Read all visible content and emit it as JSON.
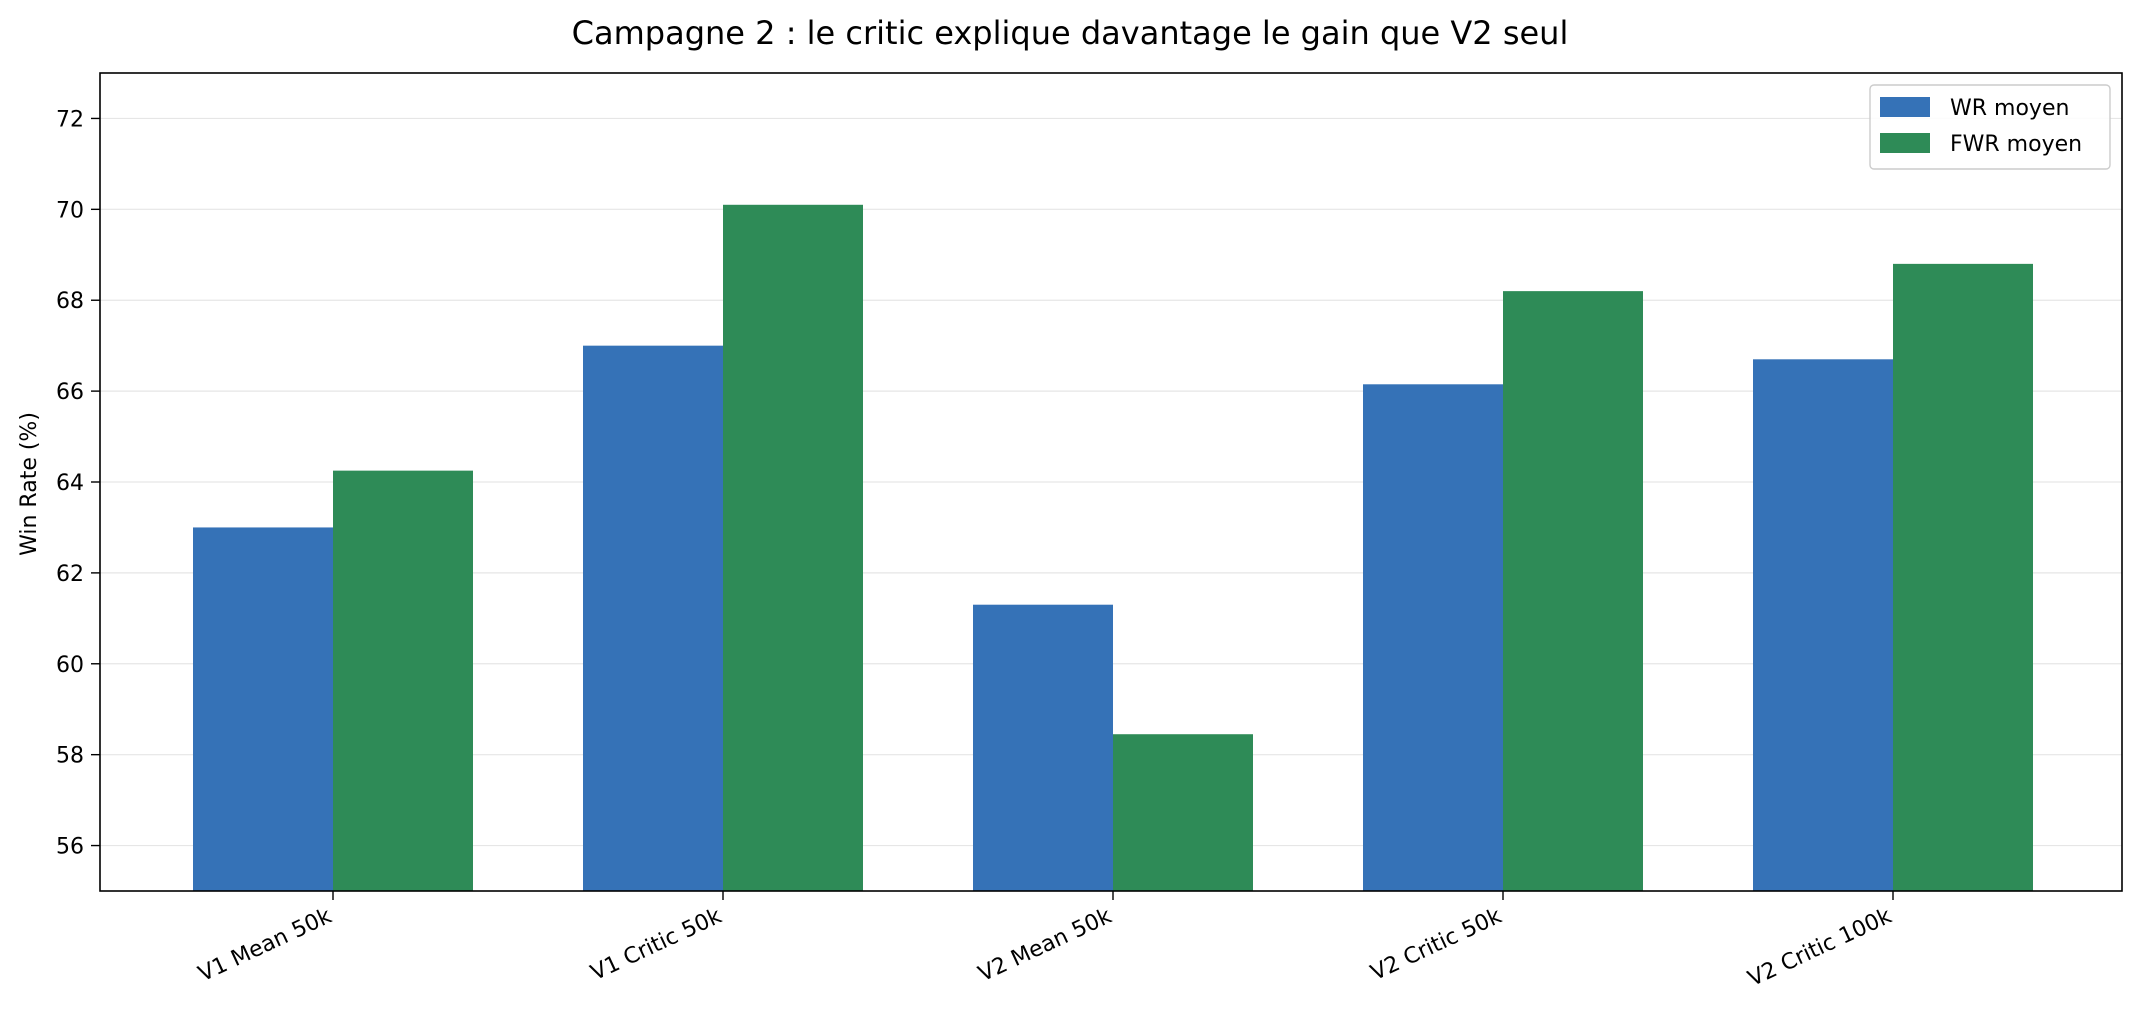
{
  "chart_data": {
    "type": "bar",
    "title": "Campagne 2 : le critic explique davantage le gain que V2 seul",
    "xlabel": "",
    "ylabel": "Win Rate (%)",
    "ylim": [
      55,
      73
    ],
    "yticks": [
      56,
      58,
      60,
      62,
      64,
      66,
      68,
      70,
      72
    ],
    "ytick_labels": [
      "56",
      "58",
      "60",
      "62",
      "64",
      "66",
      "68",
      "70",
      "72"
    ],
    "grid": "horizontal",
    "legend_position": "top-right",
    "categories": [
      "V1 Mean 50k",
      "V1 Critic 50k",
      "V2 Mean 50k",
      "V2 Critic 50k",
      "V2 Critic 100k"
    ],
    "series": [
      {
        "name": "WR moyen",
        "color": "#3572b7",
        "values": [
          63.0,
          67.0,
          61.3,
          66.15,
          66.7
        ]
      },
      {
        "name": "FWR moyen",
        "color": "#2e8b57",
        "values": [
          64.25,
          70.1,
          58.45,
          68.2,
          68.8
        ]
      }
    ]
  }
}
